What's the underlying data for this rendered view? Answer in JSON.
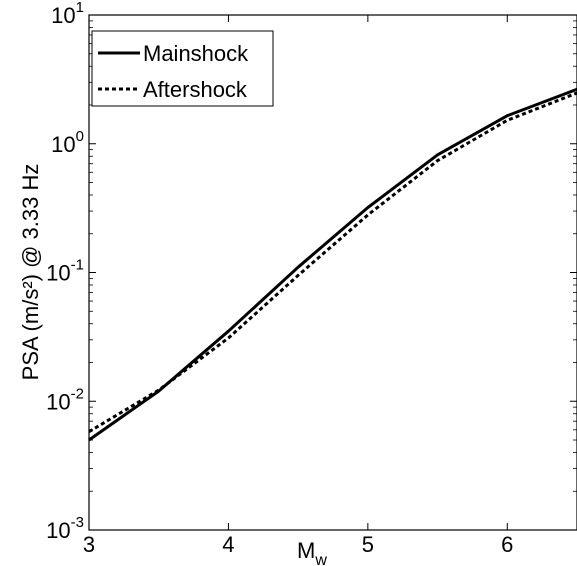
{
  "chart_data": {
    "type": "line",
    "xlabel": "M",
    "xlabel_sub": "w",
    "ylabel": "PSA (m/s²) @ 3.33 Hz",
    "xlim": [
      3,
      6.5
    ],
    "ylim": [
      0.001,
      10
    ],
    "yscale": "log",
    "grid": false,
    "legend_position": "top-left",
    "x_ticks": [
      3,
      4,
      5,
      6
    ],
    "x_tick_labels": [
      "3",
      "4",
      "5",
      "6"
    ],
    "y_ticks": [
      0.001,
      0.01,
      0.1,
      1,
      10
    ],
    "y_tick_labels": [
      {
        "base": "10",
        "exp": "-3"
      },
      {
        "base": "10",
        "exp": "-2"
      },
      {
        "base": "10",
        "exp": "-1"
      },
      {
        "base": "10",
        "exp": "0"
      },
      {
        "base": "10",
        "exp": "1"
      }
    ],
    "series": [
      {
        "name": "Mainshock",
        "style": "solid",
        "color": "#000000",
        "x": [
          3,
          3.5,
          4,
          4.5,
          5,
          5.5,
          6,
          6.5
        ],
        "y": [
          0.005,
          0.012,
          0.035,
          0.11,
          0.32,
          0.82,
          1.65,
          2.65
        ]
      },
      {
        "name": "Aftershock",
        "style": "dashed",
        "color": "#000000",
        "x": [
          3,
          3.5,
          4,
          4.5,
          5,
          5.5,
          6,
          6.5
        ],
        "y": [
          0.0058,
          0.0122,
          0.031,
          0.095,
          0.28,
          0.74,
          1.52,
          2.48
        ]
      }
    ]
  }
}
